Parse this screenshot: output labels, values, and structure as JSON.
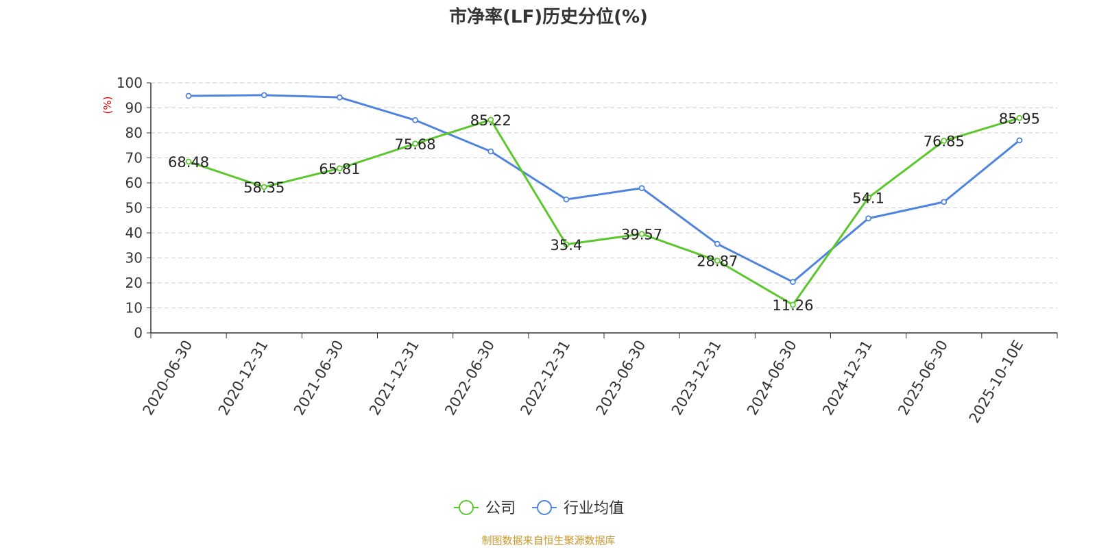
{
  "title": "市净率(LF)历史分位(%)",
  "source": "制图数据来自恒生聚源数据库",
  "chart_data": {
    "type": "line",
    "title": "市净率(LF)历史分位(%)",
    "ylabel": "(%)",
    "xlabel": "",
    "ylim": [
      0,
      100
    ],
    "yticks": [
      "0",
      "10",
      "20",
      "30",
      "40",
      "50",
      "60",
      "70",
      "80",
      "90",
      "100"
    ],
    "grid": true,
    "legend_position": "bottom-center",
    "categories": [
      "2020-06-30",
      "2020-12-31",
      "2021-06-30",
      "2021-12-31",
      "2022-06-30",
      "2022-12-31",
      "2023-06-30",
      "2023-12-31",
      "2024-06-30",
      "2024-12-31",
      "2025-06-30",
      "2025-10-10E"
    ],
    "series": [
      {
        "name": "公司",
        "color": "#5cc72c",
        "values": [
          68.48,
          58.35,
          65.81,
          75.68,
          85.22,
          35.4,
          39.57,
          28.87,
          11.26,
          54.1,
          76.85,
          85.95
        ],
        "labels": [
          "68.48",
          "58.35",
          "65.81",
          "75.68",
          "85.22",
          "35.4",
          "39.57",
          "28.87",
          "11.26",
          "54.1",
          "76.85",
          "85.95"
        ]
      },
      {
        "name": "行业均值",
        "color": "#4f84de",
        "values": [
          94.8,
          95.1,
          94.2,
          85.1,
          72.6,
          53.4,
          57.9,
          35.6,
          20.4,
          45.8,
          52.4,
          77.0
        ]
      }
    ]
  }
}
